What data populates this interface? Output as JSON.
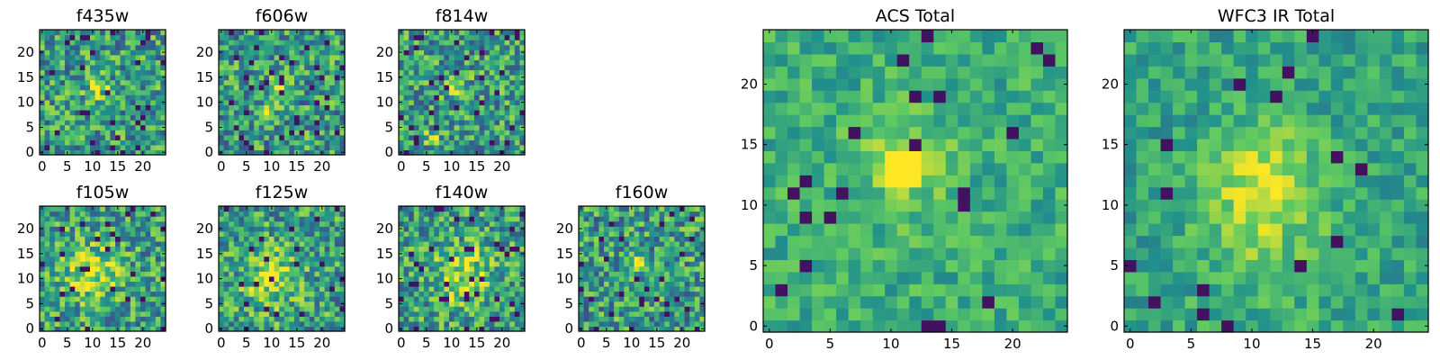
{
  "figure": {
    "background": "#ffffff",
    "colormap": "viridis",
    "colormap_stops": [
      "#440154",
      "#3b528b",
      "#21918c",
      "#5ec962",
      "#fde725"
    ]
  },
  "chart_data": [
    {
      "type": "heatmap",
      "title": "f435w",
      "grid": [
        25,
        25
      ],
      "xlim": [
        0,
        24
      ],
      "ylim": [
        0,
        24
      ],
      "xticks": [
        0,
        5,
        10,
        15,
        20
      ],
      "yticks": [
        0,
        5,
        10,
        15,
        20
      ],
      "peak": {
        "x": 11,
        "y": 13
      },
      "structure": "faint compact source near center, very noisy background",
      "noise_seed": 11
    },
    {
      "type": "heatmap",
      "title": "f606w",
      "grid": [
        25,
        25
      ],
      "xlim": [
        0,
        24
      ],
      "ylim": [
        0,
        24
      ],
      "xticks": [
        0,
        5,
        10,
        15,
        20
      ],
      "yticks": [
        0,
        5,
        10,
        15,
        20
      ],
      "peak": {
        "x": 11,
        "y": 13
      },
      "structure": "compact source near center with secondary bright patch below",
      "noise_seed": 23
    },
    {
      "type": "heatmap",
      "title": "f814w",
      "grid": [
        25,
        25
      ],
      "xlim": [
        0,
        24
      ],
      "ylim": [
        0,
        24
      ],
      "xticks": [
        0,
        5,
        10,
        15,
        20
      ],
      "yticks": [
        0,
        5,
        10,
        15,
        20
      ],
      "peak": {
        "x": 11,
        "y": 13
      },
      "structure": "compact source near center, bright spot near lower-left",
      "noise_seed": 37
    },
    {
      "type": "heatmap",
      "title": "f105w",
      "grid": [
        25,
        25
      ],
      "xlim": [
        0,
        24
      ],
      "ylim": [
        0,
        24
      ],
      "xticks": [
        0,
        5,
        10,
        15,
        20
      ],
      "yticks": [
        0,
        5,
        10,
        15,
        20
      ],
      "peak": {
        "x": 10,
        "y": 11
      },
      "structure": "extended bright emission around center",
      "noise_seed": 41
    },
    {
      "type": "heatmap",
      "title": "f125w",
      "grid": [
        25,
        25
      ],
      "xlim": [
        0,
        24
      ],
      "ylim": [
        0,
        24
      ],
      "xticks": [
        0,
        5,
        10,
        15,
        20
      ],
      "yticks": [
        0,
        5,
        10,
        15,
        20
      ],
      "peak": {
        "x": 10,
        "y": 10
      },
      "structure": "broad diffuse emission",
      "noise_seed": 53
    },
    {
      "type": "heatmap",
      "title": "f140w",
      "grid": [
        25,
        25
      ],
      "xlim": [
        0,
        24
      ],
      "ylim": [
        0,
        24
      ],
      "xticks": [
        0,
        5,
        10,
        15,
        20
      ],
      "yticks": [
        0,
        5,
        10,
        15,
        20
      ],
      "peak": {
        "x": 12,
        "y": 11
      },
      "structure": "broad diffuse emission",
      "noise_seed": 67
    },
    {
      "type": "heatmap",
      "title": "f160w",
      "grid": [
        25,
        25
      ],
      "xlim": [
        0,
        24
      ],
      "ylim": [
        0,
        24
      ],
      "xticks": [
        0,
        5,
        10,
        15,
        20
      ],
      "yticks": [
        0,
        5,
        10,
        15,
        20
      ],
      "peak": {
        "x": 11,
        "y": 13
      },
      "structure": "compact source near center, noisy",
      "noise_seed": 79
    },
    {
      "type": "heatmap",
      "title": "ACS Total",
      "grid": [
        25,
        25
      ],
      "xlim": [
        0,
        24
      ],
      "ylim": [
        0,
        24
      ],
      "xticks": [
        0,
        5,
        10,
        15,
        20
      ],
      "yticks": [
        0,
        5,
        10,
        15,
        20
      ],
      "peak": {
        "x": 11,
        "y": 13
      },
      "structure": "bright compact 3x3 source at center on green background",
      "noise_seed": 97
    },
    {
      "type": "heatmap",
      "title": "WFC3 IR Total",
      "grid": [
        25,
        25
      ],
      "xlim": [
        0,
        24
      ],
      "ylim": [
        0,
        24
      ],
      "xticks": [
        0,
        5,
        10,
        15,
        20
      ],
      "yticks": [
        0,
        5,
        10,
        15,
        20
      ],
      "peak": {
        "x": 11,
        "y": 12
      },
      "structure": "extended bright source near center with diffuse halo",
      "noise_seed": 113
    }
  ]
}
